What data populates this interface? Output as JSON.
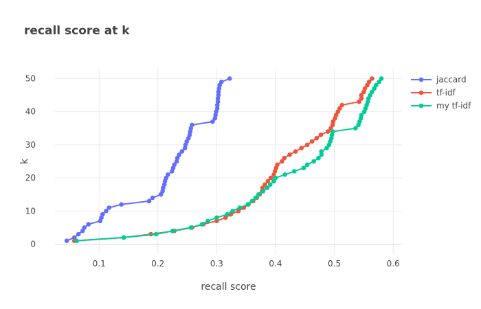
{
  "chart_data": {
    "type": "line",
    "title": "recall score at k",
    "xlabel": "recall score",
    "ylabel": "k",
    "xlim": [
      0.025,
      0.615
    ],
    "ylim": [
      -3,
      53
    ],
    "xticks": [
      0.1,
      0.2,
      0.3,
      0.4,
      0.5,
      0.6
    ],
    "xtick_labels": [
      "0.1",
      "0.2",
      "0.3",
      "0.4",
      "0.5",
      "0.6"
    ],
    "yticks": [
      0,
      10,
      20,
      30,
      40,
      50
    ],
    "ytick_labels": [
      "0",
      "10",
      "20",
      "30",
      "40",
      "50"
    ],
    "grid": true,
    "legend_position": "top-right",
    "series": [
      {
        "name": "jaccard",
        "color": "#636efa",
        "x": [
          0.045,
          0.058,
          0.065,
          0.072,
          0.075,
          0.082,
          0.102,
          0.104,
          0.106,
          0.112,
          0.117,
          0.138,
          0.185,
          0.191,
          0.205,
          0.208,
          0.209,
          0.211,
          0.212,
          0.214,
          0.217,
          0.224,
          0.226,
          0.228,
          0.232,
          0.233,
          0.236,
          0.241,
          0.246,
          0.247,
          0.249,
          0.252,
          0.254,
          0.255,
          0.256,
          0.258,
          0.293,
          0.297,
          0.298,
          0.299,
          0.301,
          0.301,
          0.302,
          0.302,
          0.303,
          0.303,
          0.304,
          0.305,
          0.308,
          0.322
        ],
        "y": [
          1,
          2,
          3,
          4,
          5,
          6,
          7,
          8,
          9,
          10,
          11,
          12,
          13,
          14,
          15,
          16,
          17,
          18,
          19,
          20,
          21,
          22,
          23,
          24,
          25,
          26,
          27,
          28,
          29,
          30,
          31,
          32,
          33,
          34,
          35,
          36,
          37,
          38,
          39,
          40,
          41,
          42,
          43,
          44,
          45,
          46,
          47,
          48,
          49,
          50
        ]
      },
      {
        "name": "tf-idf",
        "color": "#ef553b",
        "x": [
          0.058,
          0.142,
          0.188,
          0.228,
          0.258,
          0.277,
          0.3,
          0.315,
          0.324,
          0.337,
          0.346,
          0.354,
          0.362,
          0.368,
          0.373,
          0.377,
          0.378,
          0.382,
          0.387,
          0.392,
          0.397,
          0.399,
          0.401,
          0.403,
          0.411,
          0.415,
          0.424,
          0.434,
          0.444,
          0.454,
          0.462,
          0.47,
          0.477,
          0.489,
          0.494,
          0.497,
          0.498,
          0.501,
          0.503,
          0.506,
          0.509,
          0.513,
          0.542,
          0.546,
          0.546,
          0.55,
          0.552,
          0.556,
          0.559,
          0.564
        ],
        "y": [
          1,
          2,
          3,
          4,
          5,
          6,
          7,
          8,
          9,
          10,
          11,
          12,
          13,
          14,
          15,
          16,
          17,
          18,
          19,
          20,
          21,
          22,
          23,
          24,
          25,
          26,
          27,
          28,
          29,
          30,
          31,
          32,
          33,
          34,
          35,
          36,
          37,
          38,
          39,
          40,
          41,
          42,
          43,
          44,
          45,
          46,
          47,
          48,
          49,
          50
        ]
      },
      {
        "name": "my tf-idf",
        "color": "#00cc96",
        "x": [
          0.062,
          0.142,
          0.197,
          0.225,
          0.256,
          0.275,
          0.285,
          0.3,
          0.318,
          0.327,
          0.339,
          0.353,
          0.36,
          0.366,
          0.371,
          0.379,
          0.386,
          0.391,
          0.397,
          0.4,
          0.416,
          0.432,
          0.448,
          0.454,
          0.465,
          0.473,
          0.478,
          0.478,
          0.487,
          0.491,
          0.493,
          0.495,
          0.496,
          0.497,
          0.536,
          0.541,
          0.543,
          0.545,
          0.546,
          0.551,
          0.553,
          0.555,
          0.557,
          0.558,
          0.561,
          0.564,
          0.568,
          0.571,
          0.576,
          0.58
        ],
        "y": [
          1,
          2,
          3,
          4,
          5,
          6,
          7,
          8,
          9,
          10,
          11,
          12,
          13,
          14,
          15,
          16,
          17,
          18,
          19,
          20,
          21,
          22,
          23,
          24,
          25,
          26,
          27,
          28,
          29,
          30,
          31,
          32,
          33,
          34,
          35,
          36,
          37,
          38,
          39,
          40,
          41,
          42,
          43,
          44,
          45,
          46,
          47,
          48,
          49,
          50
        ]
      }
    ]
  }
}
